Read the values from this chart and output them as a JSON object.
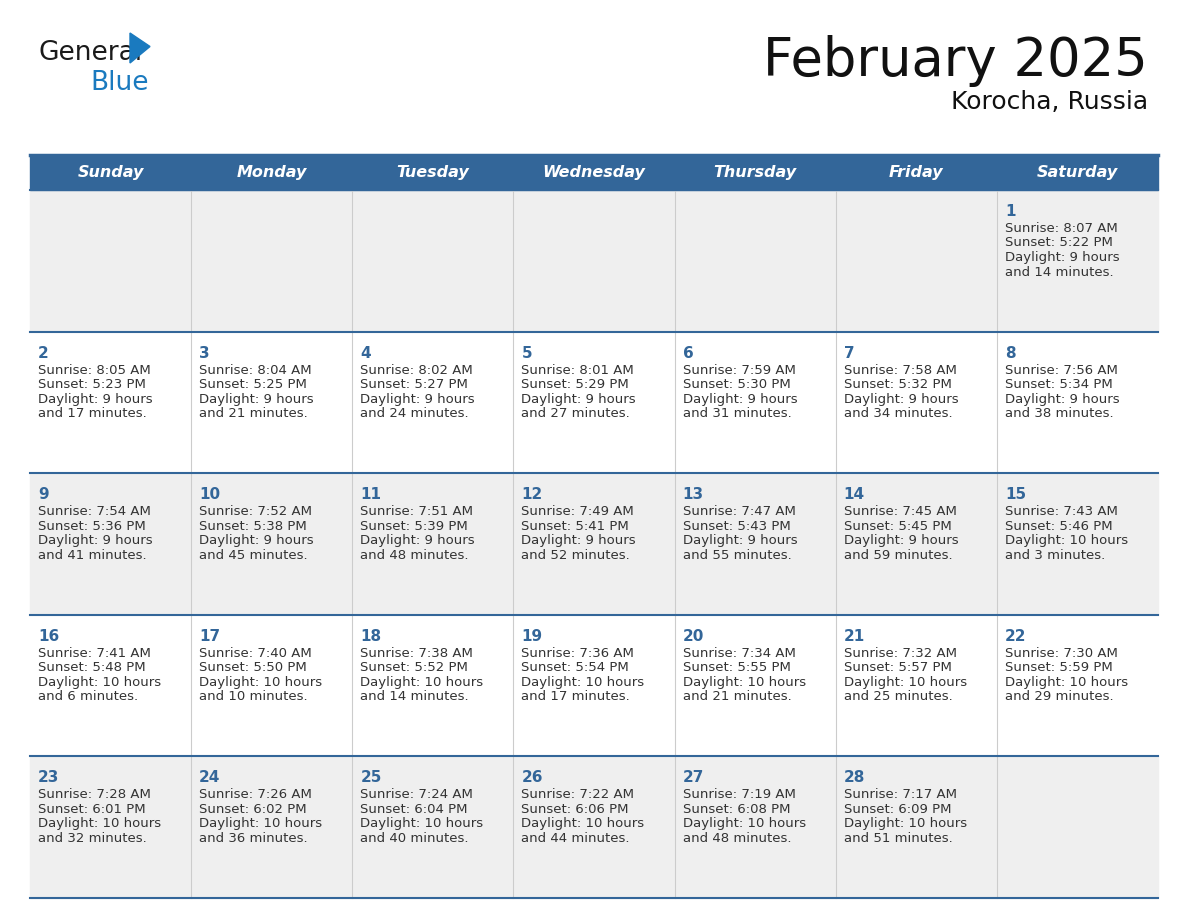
{
  "title": "February 2025",
  "subtitle": "Korocha, Russia",
  "days_of_week": [
    "Sunday",
    "Monday",
    "Tuesday",
    "Wednesday",
    "Thursday",
    "Friday",
    "Saturday"
  ],
  "header_bg": "#336699",
  "header_text_color": "#ffffff",
  "row_bg_odd": "#efefef",
  "row_bg_even": "#ffffff",
  "border_color": "#336699",
  "day_num_color": "#336699",
  "cell_text_color": "#333333",
  "title_color": "#111111",
  "subtitle_color": "#111111",
  "calendar_data": [
    [
      null,
      null,
      null,
      null,
      null,
      null,
      {
        "day": "1",
        "sunrise": "Sunrise: 8:07 AM",
        "sunset": "Sunset: 5:22 PM",
        "daylight": "Daylight: 9 hours",
        "daylight2": "and 14 minutes."
      }
    ],
    [
      {
        "day": "2",
        "sunrise": "Sunrise: 8:05 AM",
        "sunset": "Sunset: 5:23 PM",
        "daylight": "Daylight: 9 hours",
        "daylight2": "and 17 minutes."
      },
      {
        "day": "3",
        "sunrise": "Sunrise: 8:04 AM",
        "sunset": "Sunset: 5:25 PM",
        "daylight": "Daylight: 9 hours",
        "daylight2": "and 21 minutes."
      },
      {
        "day": "4",
        "sunrise": "Sunrise: 8:02 AM",
        "sunset": "Sunset: 5:27 PM",
        "daylight": "Daylight: 9 hours",
        "daylight2": "and 24 minutes."
      },
      {
        "day": "5",
        "sunrise": "Sunrise: 8:01 AM",
        "sunset": "Sunset: 5:29 PM",
        "daylight": "Daylight: 9 hours",
        "daylight2": "and 27 minutes."
      },
      {
        "day": "6",
        "sunrise": "Sunrise: 7:59 AM",
        "sunset": "Sunset: 5:30 PM",
        "daylight": "Daylight: 9 hours",
        "daylight2": "and 31 minutes."
      },
      {
        "day": "7",
        "sunrise": "Sunrise: 7:58 AM",
        "sunset": "Sunset: 5:32 PM",
        "daylight": "Daylight: 9 hours",
        "daylight2": "and 34 minutes."
      },
      {
        "day": "8",
        "sunrise": "Sunrise: 7:56 AM",
        "sunset": "Sunset: 5:34 PM",
        "daylight": "Daylight: 9 hours",
        "daylight2": "and 38 minutes."
      }
    ],
    [
      {
        "day": "9",
        "sunrise": "Sunrise: 7:54 AM",
        "sunset": "Sunset: 5:36 PM",
        "daylight": "Daylight: 9 hours",
        "daylight2": "and 41 minutes."
      },
      {
        "day": "10",
        "sunrise": "Sunrise: 7:52 AM",
        "sunset": "Sunset: 5:38 PM",
        "daylight": "Daylight: 9 hours",
        "daylight2": "and 45 minutes."
      },
      {
        "day": "11",
        "sunrise": "Sunrise: 7:51 AM",
        "sunset": "Sunset: 5:39 PM",
        "daylight": "Daylight: 9 hours",
        "daylight2": "and 48 minutes."
      },
      {
        "day": "12",
        "sunrise": "Sunrise: 7:49 AM",
        "sunset": "Sunset: 5:41 PM",
        "daylight": "Daylight: 9 hours",
        "daylight2": "and 52 minutes."
      },
      {
        "day": "13",
        "sunrise": "Sunrise: 7:47 AM",
        "sunset": "Sunset: 5:43 PM",
        "daylight": "Daylight: 9 hours",
        "daylight2": "and 55 minutes."
      },
      {
        "day": "14",
        "sunrise": "Sunrise: 7:45 AM",
        "sunset": "Sunset: 5:45 PM",
        "daylight": "Daylight: 9 hours",
        "daylight2": "and 59 minutes."
      },
      {
        "day": "15",
        "sunrise": "Sunrise: 7:43 AM",
        "sunset": "Sunset: 5:46 PM",
        "daylight": "Daylight: 10 hours",
        "daylight2": "and 3 minutes."
      }
    ],
    [
      {
        "day": "16",
        "sunrise": "Sunrise: 7:41 AM",
        "sunset": "Sunset: 5:48 PM",
        "daylight": "Daylight: 10 hours",
        "daylight2": "and 6 minutes."
      },
      {
        "day": "17",
        "sunrise": "Sunrise: 7:40 AM",
        "sunset": "Sunset: 5:50 PM",
        "daylight": "Daylight: 10 hours",
        "daylight2": "and 10 minutes."
      },
      {
        "day": "18",
        "sunrise": "Sunrise: 7:38 AM",
        "sunset": "Sunset: 5:52 PM",
        "daylight": "Daylight: 10 hours",
        "daylight2": "and 14 minutes."
      },
      {
        "day": "19",
        "sunrise": "Sunrise: 7:36 AM",
        "sunset": "Sunset: 5:54 PM",
        "daylight": "Daylight: 10 hours",
        "daylight2": "and 17 minutes."
      },
      {
        "day": "20",
        "sunrise": "Sunrise: 7:34 AM",
        "sunset": "Sunset: 5:55 PM",
        "daylight": "Daylight: 10 hours",
        "daylight2": "and 21 minutes."
      },
      {
        "day": "21",
        "sunrise": "Sunrise: 7:32 AM",
        "sunset": "Sunset: 5:57 PM",
        "daylight": "Daylight: 10 hours",
        "daylight2": "and 25 minutes."
      },
      {
        "day": "22",
        "sunrise": "Sunrise: 7:30 AM",
        "sunset": "Sunset: 5:59 PM",
        "daylight": "Daylight: 10 hours",
        "daylight2": "and 29 minutes."
      }
    ],
    [
      {
        "day": "23",
        "sunrise": "Sunrise: 7:28 AM",
        "sunset": "Sunset: 6:01 PM",
        "daylight": "Daylight: 10 hours",
        "daylight2": "and 32 minutes."
      },
      {
        "day": "24",
        "sunrise": "Sunrise: 7:26 AM",
        "sunset": "Sunset: 6:02 PM",
        "daylight": "Daylight: 10 hours",
        "daylight2": "and 36 minutes."
      },
      {
        "day": "25",
        "sunrise": "Sunrise: 7:24 AM",
        "sunset": "Sunset: 6:04 PM",
        "daylight": "Daylight: 10 hours",
        "daylight2": "and 40 minutes."
      },
      {
        "day": "26",
        "sunrise": "Sunrise: 7:22 AM",
        "sunset": "Sunset: 6:06 PM",
        "daylight": "Daylight: 10 hours",
        "daylight2": "and 44 minutes."
      },
      {
        "day": "27",
        "sunrise": "Sunrise: 7:19 AM",
        "sunset": "Sunset: 6:08 PM",
        "daylight": "Daylight: 10 hours",
        "daylight2": "and 48 minutes."
      },
      {
        "day": "28",
        "sunrise": "Sunrise: 7:17 AM",
        "sunset": "Sunset: 6:09 PM",
        "daylight": "Daylight: 10 hours",
        "daylight2": "and 51 minutes."
      },
      null
    ]
  ]
}
